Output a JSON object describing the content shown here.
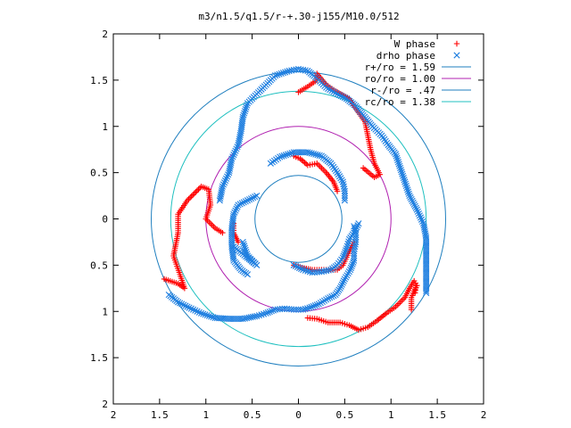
{
  "chart_data": {
    "type": "scatter",
    "title": "m3/n1.5/q1.5/r-+.30-j155/M10.0/512",
    "xlabel": "",
    "ylabel": "",
    "xlim": [
      -2,
      2
    ],
    "ylim": [
      -2,
      2
    ],
    "x_ticks": [
      -2,
      -1.5,
      -1,
      -0.5,
      0,
      0.5,
      1,
      1.5,
      2
    ],
    "y_ticks": [
      -2,
      -1.5,
      -1,
      -0.5,
      0,
      0.5,
      1,
      1.5,
      2
    ],
    "x_tick_labels": [
      "2",
      "1.5",
      "1",
      "0.5",
      "0",
      "0.5",
      "1",
      "1.5",
      "2"
    ],
    "y_tick_labels": [
      "2",
      "1.5",
      "1",
      "0.5",
      "0",
      "0.5",
      "1",
      "1.5",
      "2"
    ],
    "grid": false,
    "legend_position": "top-right",
    "series": [
      {
        "name": "W phase",
        "kind": "points",
        "marker": "plus",
        "color": "#ff0000",
        "arms": [
          [
            [
              -1.45,
              -0.65
            ],
            [
              -1.3,
              -0.7
            ],
            [
              -1.23,
              -0.75
            ],
            [
              -1.28,
              -0.6
            ],
            [
              -1.35,
              -0.4
            ],
            [
              -1.3,
              -0.15
            ],
            [
              -1.3,
              0.05
            ],
            [
              -1.2,
              0.2
            ],
            [
              -1.05,
              0.35
            ],
            [
              -0.97,
              0.32
            ],
            [
              -0.95,
              0.15
            ],
            [
              -1.0,
              0.0
            ],
            [
              -0.9,
              -0.1
            ],
            [
              -0.82,
              -0.15
            ]
          ],
          [
            [
              -0.7,
              -0.05
            ],
            [
              -0.7,
              -0.15
            ],
            [
              -0.65,
              -0.25
            ]
          ],
          [
            [
              -0.05,
              0.68
            ],
            [
              0.02,
              0.65
            ],
            [
              0.1,
              0.58
            ],
            [
              0.2,
              0.6
            ],
            [
              0.3,
              0.5
            ],
            [
              0.38,
              0.4
            ],
            [
              0.42,
              0.3
            ]
          ],
          [
            [
              0.6,
              -0.25
            ],
            [
              0.55,
              -0.35
            ],
            [
              0.48,
              -0.5
            ],
            [
              0.42,
              -0.55
            ],
            [
              0.35,
              -0.55
            ],
            [
              0.25,
              -0.55
            ],
            [
              0.15,
              -0.55
            ],
            [
              0.0,
              -0.52
            ],
            [
              -0.05,
              -0.5
            ]
          ],
          [
            [
              0.0,
              1.37
            ],
            [
              0.1,
              1.43
            ],
            [
              0.2,
              1.5
            ],
            [
              0.2,
              1.57
            ],
            [
              0.3,
              1.45
            ],
            [
              0.4,
              1.38
            ],
            [
              0.55,
              1.3
            ],
            [
              0.65,
              1.15
            ],
            [
              0.72,
              1.05
            ],
            [
              0.75,
              0.9
            ],
            [
              0.78,
              0.75
            ],
            [
              0.82,
              0.6
            ],
            [
              0.88,
              0.48
            ],
            [
              0.82,
              0.45
            ],
            [
              0.7,
              0.55
            ]
          ],
          [
            [
              0.1,
              -1.07
            ],
            [
              0.2,
              -1.08
            ],
            [
              0.32,
              -1.12
            ],
            [
              0.45,
              -1.12
            ],
            [
              0.55,
              -1.15
            ],
            [
              0.65,
              -1.2
            ],
            [
              0.75,
              -1.17
            ],
            [
              0.85,
              -1.1
            ],
            [
              0.95,
              -1.02
            ],
            [
              1.05,
              -0.95
            ],
            [
              1.15,
              -0.85
            ],
            [
              1.2,
              -0.75
            ],
            [
              1.25,
              -0.67
            ],
            [
              1.28,
              -0.72
            ],
            [
              1.22,
              -0.85
            ],
            [
              1.22,
              -0.98
            ]
          ],
          [
            [
              1.27,
              -0.72
            ],
            [
              1.26,
              -0.8
            ]
          ]
        ]
      },
      {
        "name": "drho phase",
        "kind": "points",
        "marker": "cross",
        "color": "#1f7fe0",
        "arms": [
          [
            [
              -1.4,
              -0.82
            ],
            [
              -1.3,
              -0.9
            ],
            [
              -1.18,
              -0.96
            ],
            [
              -1.05,
              -1.02
            ],
            [
              -0.9,
              -1.07
            ],
            [
              -0.75,
              -1.08
            ],
            [
              -0.6,
              -1.08
            ],
            [
              -0.45,
              -1.05
            ],
            [
              -0.35,
              -1.02
            ],
            [
              -0.25,
              -0.98
            ],
            [
              -0.15,
              -0.97
            ],
            [
              -0.05,
              -0.98
            ],
            [
              0.05,
              -0.98
            ],
            [
              0.12,
              -0.96
            ],
            [
              0.22,
              -0.92
            ],
            [
              0.32,
              -0.86
            ],
            [
              0.4,
              -0.82
            ],
            [
              0.45,
              -0.75
            ],
            [
              0.5,
              -0.65
            ],
            [
              0.56,
              -0.55
            ],
            [
              0.6,
              -0.45
            ],
            [
              0.6,
              -0.35
            ],
            [
              0.62,
              -0.25
            ],
            [
              0.62,
              -0.15
            ],
            [
              0.6,
              -0.08
            ]
          ],
          [
            [
              -0.85,
              0.2
            ],
            [
              -0.82,
              0.35
            ],
            [
              -0.75,
              0.5
            ],
            [
              -0.72,
              0.65
            ],
            [
              -0.65,
              0.8
            ],
            [
              -0.62,
              0.95
            ],
            [
              -0.6,
              1.1
            ],
            [
              -0.55,
              1.25
            ],
            [
              -0.45,
              1.35
            ],
            [
              -0.35,
              1.45
            ],
            [
              -0.25,
              1.55
            ],
            [
              -0.1,
              1.6
            ],
            [
              0.0,
              1.62
            ],
            [
              0.1,
              1.6
            ],
            [
              0.2,
              1.52
            ],
            [
              0.3,
              1.42
            ],
            [
              0.42,
              1.35
            ],
            [
              0.52,
              1.3
            ],
            [
              0.62,
              1.22
            ],
            [
              0.7,
              1.12
            ],
            [
              0.8,
              1.0
            ],
            [
              0.9,
              0.9
            ],
            [
              0.97,
              0.8
            ],
            [
              1.05,
              0.7
            ],
            [
              1.1,
              0.55
            ],
            [
              1.15,
              0.4
            ],
            [
              1.2,
              0.25
            ],
            [
              1.28,
              0.1
            ],
            [
              1.35,
              -0.05
            ],
            [
              1.38,
              -0.2
            ],
            [
              1.38,
              -0.35
            ],
            [
              1.38,
              -0.5
            ],
            [
              1.38,
              -0.65
            ],
            [
              1.38,
              -0.8
            ]
          ],
          [
            [
              -0.55,
              -0.6
            ],
            [
              -0.62,
              -0.55
            ],
            [
              -0.7,
              -0.45
            ],
            [
              -0.72,
              -0.3
            ],
            [
              -0.72,
              -0.1
            ],
            [
              -0.7,
              0.05
            ],
            [
              -0.65,
              0.15
            ],
            [
              -0.55,
              0.2
            ],
            [
              -0.45,
              0.25
            ]
          ],
          [
            [
              -0.3,
              0.6
            ],
            [
              -0.2,
              0.67
            ],
            [
              -0.05,
              0.72
            ],
            [
              0.1,
              0.72
            ],
            [
              0.25,
              0.68
            ],
            [
              0.35,
              0.6
            ],
            [
              0.42,
              0.5
            ],
            [
              0.48,
              0.4
            ],
            [
              0.5,
              0.3
            ],
            [
              0.5,
              0.2
            ]
          ],
          [
            [
              -0.05,
              -0.5
            ],
            [
              0.05,
              -0.55
            ],
            [
              0.15,
              -0.58
            ],
            [
              0.25,
              -0.57
            ],
            [
              0.35,
              -0.55
            ],
            [
              0.42,
              -0.5
            ],
            [
              0.48,
              -0.42
            ],
            [
              0.52,
              -0.32
            ],
            [
              0.55,
              -0.22
            ],
            [
              0.6,
              -0.15
            ],
            [
              0.65,
              -0.05
            ]
          ],
          [
            [
              -0.6,
              -0.25
            ],
            [
              -0.55,
              -0.4
            ],
            [
              -0.45,
              -0.5
            ],
            [
              -0.7,
              -0.3
            ]
          ]
        ]
      },
      {
        "name": "r+/ro = 1.59",
        "kind": "circle",
        "radius": 1.59,
        "color": "#1f7fbf"
      },
      {
        "name": "ro/ro = 1.00",
        "kind": "circle",
        "radius": 1.0,
        "color": "#b020b0"
      },
      {
        "name": "r-/ro = .47",
        "kind": "circle",
        "radius": 0.47,
        "color": "#1f7fbf"
      },
      {
        "name": "rc/ro = 1.38",
        "kind": "circle",
        "radius": 1.38,
        "color": "#20c0c0"
      }
    ]
  }
}
